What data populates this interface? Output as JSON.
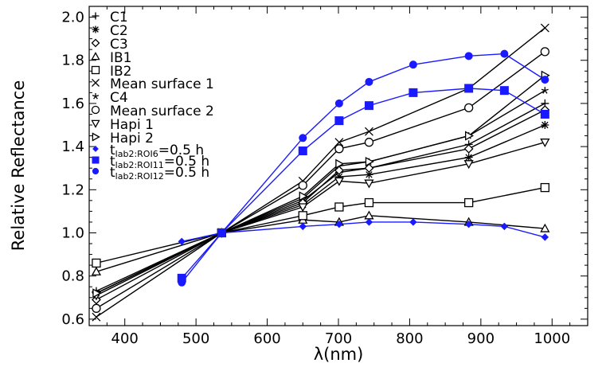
{
  "chart_data": {
    "type": "line",
    "xlabel": "λ(nm)",
    "ylabel": "Relative Reflectance",
    "xlim": [
      350,
      1050
    ],
    "ylim": [
      0.57,
      2.05
    ],
    "x_ticks": [
      400,
      500,
      600,
      700,
      800,
      900,
      1000
    ],
    "y_ticks": [
      0.6,
      0.8,
      1.0,
      1.2,
      1.4,
      1.6,
      1.8,
      2.0
    ],
    "x_tick_labels": [
      "400",
      "500",
      "600",
      "700",
      "800",
      "900",
      "1000"
    ],
    "y_tick_labels": [
      "0.6",
      "0.8",
      "1.0",
      "1.2",
      "1.4",
      "1.6",
      "1.8",
      "2.0"
    ],
    "grid": false,
    "legend_position": "top-left",
    "series": [
      {
        "name": "C1",
        "marker": "plus",
        "color": "#000000",
        "x": [
          360,
          536,
          650,
          701,
          743,
          883,
          990
        ],
        "y": [
          0.73,
          1.0,
          1.15,
          1.28,
          1.3,
          1.41,
          1.6
        ]
      },
      {
        "name": "C2",
        "marker": "asterisk",
        "color": "#000000",
        "x": [
          360,
          536,
          650,
          701,
          743,
          883,
          990
        ],
        "y": [
          0.72,
          1.0,
          1.13,
          1.26,
          1.27,
          1.35,
          1.5
        ]
      },
      {
        "name": "C3",
        "marker": "diamond",
        "color": "#000000",
        "x": [
          360,
          536,
          650,
          701,
          743,
          883,
          990
        ],
        "y": [
          0.69,
          1.0,
          1.14,
          1.29,
          1.3,
          1.39,
          1.57
        ]
      },
      {
        "name": "IB1",
        "marker": "triangle-up",
        "color": "#000000",
        "x": [
          360,
          536,
          650,
          701,
          743,
          883,
          990
        ],
        "y": [
          0.82,
          1.0,
          1.06,
          1.05,
          1.08,
          1.05,
          1.02
        ]
      },
      {
        "name": "IB2",
        "marker": "square",
        "color": "#000000",
        "x": [
          360,
          536,
          650,
          701,
          743,
          883,
          990
        ],
        "y": [
          0.86,
          1.0,
          1.08,
          1.12,
          1.14,
          1.14,
          1.21
        ]
      },
      {
        "name": "Mean surface 1",
        "marker": "x",
        "color": "#000000",
        "x": [
          360,
          536,
          650,
          701,
          743,
          883,
          990
        ],
        "y": [
          0.61,
          1.0,
          1.24,
          1.42,
          1.47,
          1.67,
          1.95
        ]
      },
      {
        "name": "C4",
        "marker": "star",
        "color": "#000000",
        "x": [
          360,
          536,
          650,
          701,
          743,
          883,
          990
        ],
        "y": [
          0.72,
          1.0,
          1.16,
          1.31,
          1.33,
          1.45,
          1.66
        ]
      },
      {
        "name": "Mean surface 2",
        "marker": "circle",
        "color": "#000000",
        "x": [
          360,
          536,
          650,
          701,
          743,
          883,
          990
        ],
        "y": [
          0.65,
          1.0,
          1.22,
          1.39,
          1.42,
          1.58,
          1.84
        ]
      },
      {
        "name": "Hapi 1",
        "marker": "triangle-down",
        "color": "#000000",
        "x": [
          360,
          536,
          650,
          701,
          743,
          883,
          990
        ],
        "y": [
          0.71,
          1.0,
          1.12,
          1.24,
          1.23,
          1.32,
          1.42
        ]
      },
      {
        "name": "Hapi 2",
        "marker": "triangle-right",
        "color": "#000000",
        "x": [
          360,
          536,
          650,
          701,
          743,
          883,
          990
        ],
        "y": [
          0.72,
          1.0,
          1.17,
          1.32,
          1.33,
          1.45,
          1.73
        ]
      },
      {
        "name": "t_lab2:ROI6=0.5 h",
        "label_main": "t",
        "label_sub": "lab2:ROI6",
        "label_rest": "=0.5 h",
        "marker": "filled-diamond",
        "color": "#1a1aff",
        "x": [
          480,
          536,
          650,
          701,
          743,
          805,
          883,
          933,
          990
        ],
        "y": [
          0.96,
          1.0,
          1.03,
          1.04,
          1.05,
          1.05,
          1.04,
          1.03,
          0.98
        ]
      },
      {
        "name": "t_lab2:ROI11=0.5 h",
        "label_main": "t",
        "label_sub": "lab2:ROI11",
        "label_rest": "=0.5 h",
        "marker": "filled-square",
        "color": "#1a1aff",
        "x": [
          480,
          536,
          650,
          701,
          743,
          805,
          883,
          933,
          990
        ],
        "y": [
          0.79,
          1.0,
          1.38,
          1.52,
          1.59,
          1.65,
          1.67,
          1.66,
          1.55
        ]
      },
      {
        "name": "t_lab2:ROI12=0.5 h",
        "label_main": "t",
        "label_sub": "lab2:ROI12",
        "label_rest": "=0.5 h",
        "marker": "filled-circle",
        "color": "#1a1aff",
        "x": [
          480,
          536,
          650,
          701,
          743,
          805,
          883,
          933,
          990
        ],
        "y": [
          0.77,
          1.0,
          1.44,
          1.6,
          1.7,
          1.78,
          1.82,
          1.83,
          1.71
        ]
      }
    ]
  }
}
